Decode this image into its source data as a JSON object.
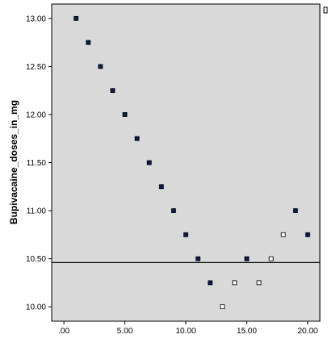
{
  "chart_data": {
    "type": "scatter",
    "title": "",
    "xlabel": "",
    "ylabel": "Bupivacaine_doses_in_mg",
    "xlim": [
      -1,
      21
    ],
    "ylim": [
      9.85,
      13.15
    ],
    "x_ticks": [
      {
        "value": 0,
        "label": ".00"
      },
      {
        "value": 5,
        "label": "5.00"
      },
      {
        "value": 10,
        "label": "10.00"
      },
      {
        "value": 15,
        "label": "15.00"
      },
      {
        "value": 20,
        "label": "20.00"
      }
    ],
    "y_ticks": [
      {
        "value": 10.0,
        "label": "10.00"
      },
      {
        "value": 10.5,
        "label": "10.50"
      },
      {
        "value": 11.0,
        "label": "11.00"
      },
      {
        "value": 11.5,
        "label": "11.50"
      },
      {
        "value": 12.0,
        "label": "12.00"
      },
      {
        "value": 12.5,
        "label": "12.50"
      },
      {
        "value": 13.0,
        "label": "13.00"
      }
    ],
    "reference_line_y": 10.46,
    "grid": false,
    "plot_background": "#d9d9d9",
    "series": [
      {
        "marker": "filled-square",
        "color": "#0a1d4e",
        "points": [
          {
            "x": 1,
            "y": 13.0
          },
          {
            "x": 2,
            "y": 12.75
          },
          {
            "x": 3,
            "y": 12.5
          },
          {
            "x": 4,
            "y": 12.25
          },
          {
            "x": 5,
            "y": 12.0
          },
          {
            "x": 6,
            "y": 11.75
          },
          {
            "x": 7,
            "y": 11.5
          },
          {
            "x": 8,
            "y": 11.25
          },
          {
            "x": 9,
            "y": 11.0
          },
          {
            "x": 10,
            "y": 10.75
          },
          {
            "x": 11,
            "y": 10.5
          },
          {
            "x": 12,
            "y": 10.25
          },
          {
            "x": 15,
            "y": 10.5
          },
          {
            "x": 19,
            "y": 11.0
          },
          {
            "x": 20,
            "y": 10.75
          }
        ]
      },
      {
        "marker": "hollow-square",
        "color": "#ffffff",
        "points": [
          {
            "x": 13,
            "y": 10.0
          },
          {
            "x": 14,
            "y": 10.25
          },
          {
            "x": 16,
            "y": 10.25
          },
          {
            "x": 17,
            "y": 10.5
          },
          {
            "x": 18,
            "y": 10.75
          }
        ]
      }
    ]
  }
}
